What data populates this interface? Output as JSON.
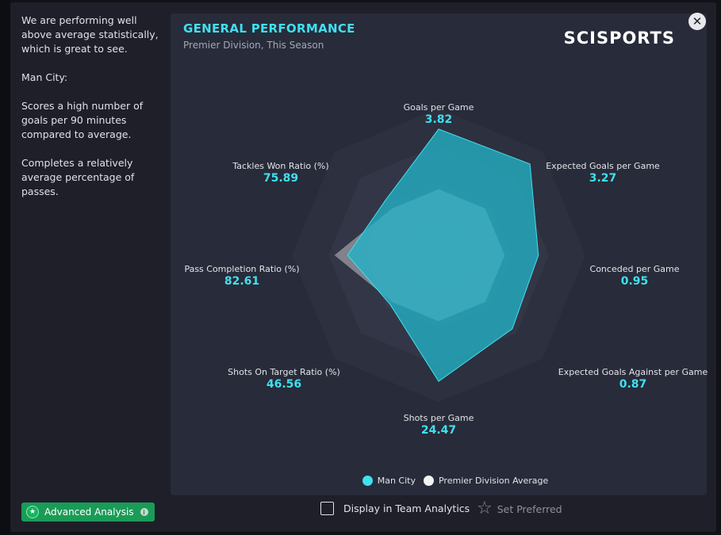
{
  "sidebar": {
    "paragraphs": [
      "We are performing well above average statistically, which is great to see.",
      "Man City:",
      "Scores a high number of goals per 90 minutes compared to average.",
      "Completes a relatively average percentage of passes."
    ]
  },
  "card": {
    "title": "GENERAL PERFORMANCE",
    "subtitle": "Premier Division, This Season",
    "logo": "SCISPORTS"
  },
  "close_icon": "✕",
  "colors": {
    "accent": "#3fe0f0",
    "team_fill": "#2bb5c8",
    "average_fill": "#c8c8cc",
    "button_green": "#1a9b58"
  },
  "chart_data": {
    "type": "radar",
    "axes": [
      {
        "name": "Goals per Game",
        "value": "3.82",
        "team_level": 0.86,
        "avg_level": 0.45
      },
      {
        "name": "Expected Goals per Game",
        "value": "3.27",
        "team_level": 0.88,
        "avg_level": 0.45
      },
      {
        "name": "Conceded per Game",
        "value": "0.95",
        "team_level": 0.68,
        "avg_level": 0.45
      },
      {
        "name": "Expected Goals Against per Game",
        "value": "0.87",
        "team_level": 0.71,
        "avg_level": 0.45
      },
      {
        "name": "Shots per Game",
        "value": "24.47",
        "team_level": 0.86,
        "avg_level": 0.45
      },
      {
        "name": "Shots On Target Ratio (%)",
        "value": "46.56",
        "team_level": 0.47,
        "avg_level": 0.45
      },
      {
        "name": "Pass Completion Ratio (%)",
        "value": "82.61",
        "team_level": 0.62,
        "avg_level": 0.71
      },
      {
        "name": "Tackles Won Ratio (%)",
        "value": "75.89",
        "team_level": 0.52,
        "avg_level": 0.45
      }
    ],
    "series": [
      {
        "name": "Man City",
        "color": "#3fe0f0"
      },
      {
        "name": "Premier Division Average",
        "color": "#f2f2f2"
      }
    ],
    "rings": 4
  },
  "legend": {
    "team_label": "Man City",
    "average_label": "Premier Division Average"
  },
  "footer": {
    "advanced_label": "Advanced Analysis",
    "team_analytics_label": "Display in Team Analytics",
    "preferred_label": "Set Preferred"
  }
}
